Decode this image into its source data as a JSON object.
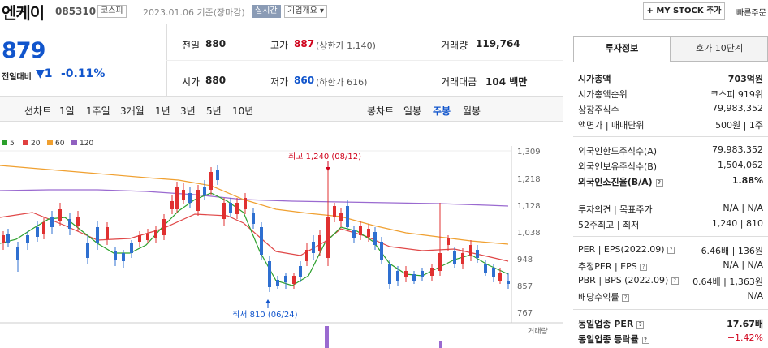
{
  "header": {
    "company_name": "엔케이",
    "code": "085310",
    "market": "코스피",
    "ref_date": "2023.01.06 기준(장마감)",
    "realtime_label": "실시간",
    "company_info_label": "기업개요 ▾",
    "mystock_label": "+ MY STOCK 추가",
    "quick_label": "빠른주문"
  },
  "price": {
    "current": "879",
    "change_label": "전일대비",
    "change_value": "▼1",
    "change_pct": "-0.11%"
  },
  "quote": {
    "prev_label": "전일",
    "prev_value": "880",
    "high_label": "고가",
    "high_value": "887",
    "upper_limit": "(상한가 1,140)",
    "volume_label": "거래량",
    "volume_value": "119,764",
    "open_label": "시가",
    "open_value": "880",
    "low_label": "저가",
    "low_value": "860",
    "lower_limit": "(하한가 616)",
    "amount_label": "거래대금",
    "amount_value": "104 백만"
  },
  "periods": {
    "line_label": "선차트",
    "items": [
      "1일",
      "1주일",
      "3개월",
      "1년",
      "3년",
      "5년",
      "10년"
    ],
    "candle_label": "봉차트",
    "candle_items": [
      "일봉",
      "주봉",
      "월봉"
    ],
    "active_candle": "주봉"
  },
  "chart": {
    "legend": [
      {
        "name": "5",
        "color": "#2ca02c"
      },
      {
        "name": "20",
        "color": "#e04040"
      },
      {
        "name": "60",
        "color": "#f0a030"
      },
      {
        "name": "120",
        "color": "#9060c0"
      }
    ],
    "y_ticks": [
      "1,309",
      "1,218",
      "1,128",
      "1,038",
      "948",
      "857",
      "767"
    ],
    "high_annotation": "최고 1,240 (08/12)",
    "low_annotation": "최저 810 (06/24)",
    "volume_label": "거래량",
    "up_color": "#e03030",
    "down_color": "#2e6fd0"
  },
  "right_panel": {
    "tab_invest": "투자정보",
    "tab_quote": "호가 10단계",
    "rows": {
      "mcap_label": "시가총액",
      "mcap_value": "703억원",
      "mcap_rank_label": "시가총액순위",
      "mcap_rank_value": "코스피 919위",
      "shares_label": "상장주식수",
      "shares_value": "79,983,352",
      "par_label": "액면가 | 매매단위",
      "par_value": "500원 | 1주",
      "foreign_limit_label": "외국인한도주식수(A)",
      "foreign_limit_value": "79,983,352",
      "foreign_hold_label": "외국인보유주식수(B)",
      "foreign_hold_value": "1,504,062",
      "foreign_ratio_label": "외국인소진율(B/A)",
      "foreign_ratio_value": "1.88%",
      "opinion_label": "투자의견 | 목표주가",
      "opinion_value": "N/A | N/A",
      "w52_label": "52주최고 | 최저",
      "w52_value": "1,240 | 810",
      "per_label": "PER | EPS(2022.09)",
      "per_value": "6.46배 | 136원",
      "est_per_label": "추정PER | EPS",
      "est_per_value": "N/A | N/A",
      "pbr_label": "PBR | BPS (2022.09)",
      "pbr_value": "0.64배 | 1,363원",
      "div_label": "배당수익률",
      "div_value": "N/A",
      "ind_per_label": "동일업종 PER",
      "ind_per_value": "17.67배",
      "ind_rate_label": "동일업종 등락률",
      "ind_rate_value": "+1.42%"
    }
  }
}
